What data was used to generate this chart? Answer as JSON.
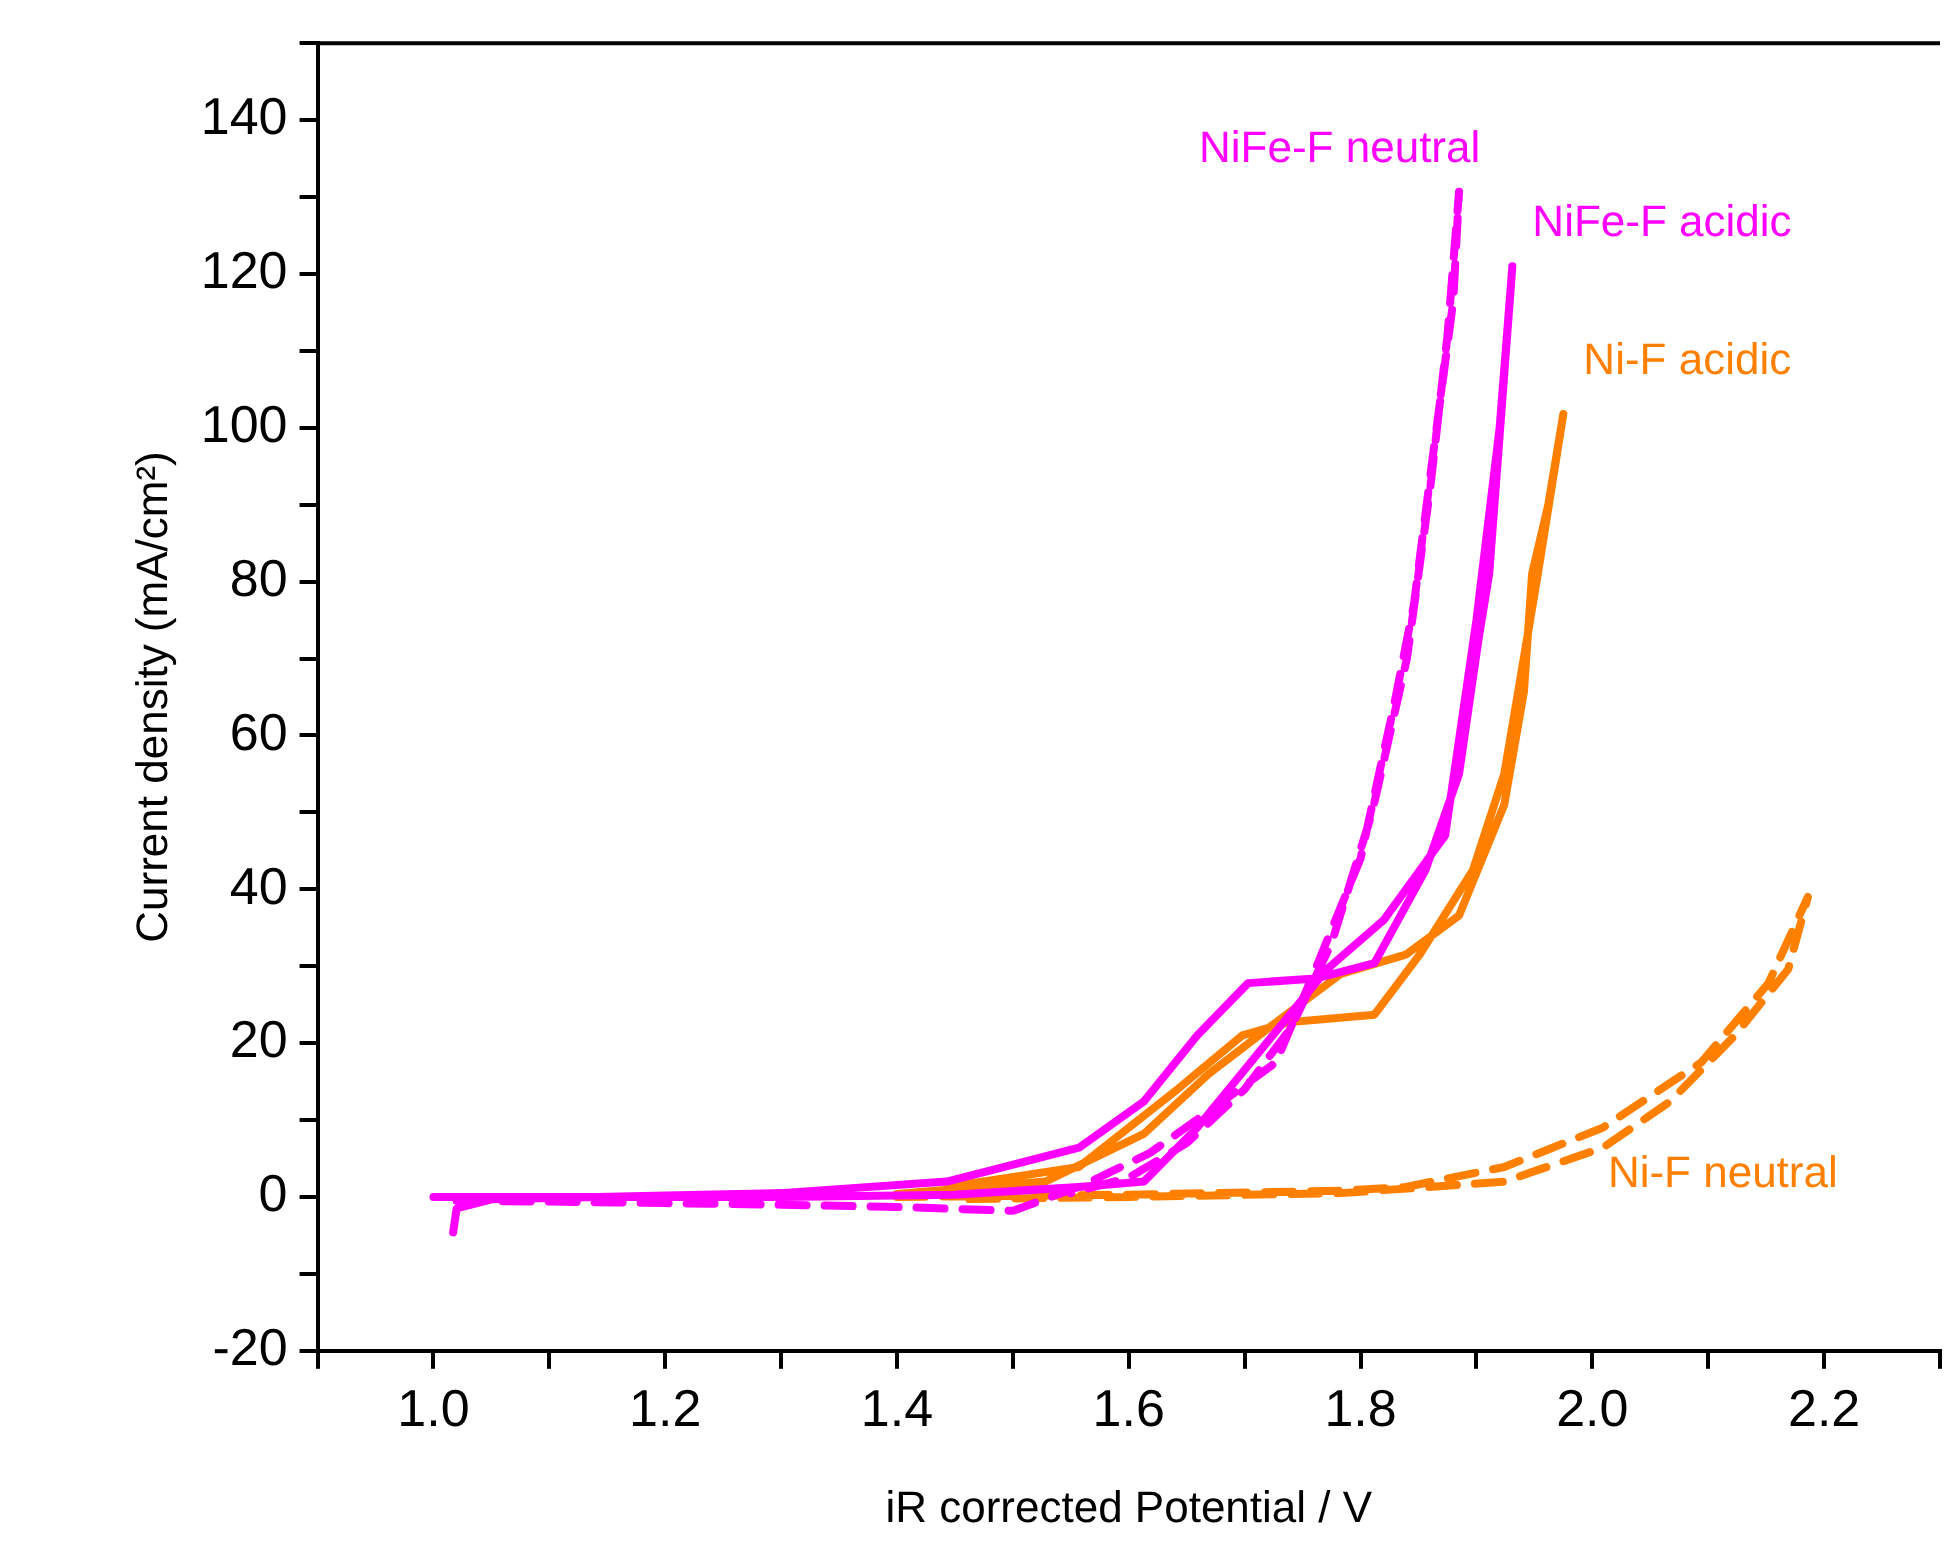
{
  "chart_data": {
    "type": "line",
    "xlabel": "iR corrected Potential / V",
    "ylabel": "Current density (mA/cm²)",
    "xlim": [
      0.9,
      2.3
    ],
    "ylim": [
      -20,
      150
    ],
    "xticks": [
      {
        "value": 0.9,
        "label": null
      },
      {
        "value": 1.0,
        "label": "1.0"
      },
      {
        "value": 1.1,
        "label": null
      },
      {
        "value": 1.2,
        "label": "1.2"
      },
      {
        "value": 1.3,
        "label": null
      },
      {
        "value": 1.4,
        "label": "1.4"
      },
      {
        "value": 1.5,
        "label": null
      },
      {
        "value": 1.6,
        "label": "1.6"
      },
      {
        "value": 1.7,
        "label": null
      },
      {
        "value": 1.8,
        "label": "1.8"
      },
      {
        "value": 1.9,
        "label": null
      },
      {
        "value": 2.0,
        "label": "2.0"
      },
      {
        "value": 2.1,
        "label": null
      },
      {
        "value": 2.2,
        "label": "2.2"
      },
      {
        "value": 2.3,
        "label": null
      }
    ],
    "yticks": [
      -20,
      {
        "value": -10,
        "label": null
      },
      0,
      {
        "value": 10,
        "label": null
      },
      20,
      {
        "value": 30,
        "label": null
      },
      40,
      {
        "value": 50,
        "label": null
      },
      60,
      {
        "value": 70,
        "label": null
      },
      80,
      {
        "value": 90,
        "label": null
      },
      100,
      {
        "value": 110,
        "label": null
      },
      120,
      {
        "value": 130,
        "label": null
      },
      140,
      {
        "value": 150,
        "label": null
      }
    ],
    "grid": false,
    "legend": false,
    "marker": "none",
    "series": [
      {
        "name": "NiFe-F neutral",
        "color": "#ff00ff",
        "line_style": "dashed",
        "x": [
          1.02,
          1.1,
          1.2,
          1.3,
          1.4,
          1.5,
          1.56,
          1.618,
          1.681,
          1.727,
          1.761,
          1.8,
          1.829,
          1.846,
          1.863,
          1.88,
          1.885,
          1.875,
          1.86,
          1.84,
          1.81,
          1.775,
          1.74,
          1.7,
          1.65,
          1.6,
          1.55
        ],
        "values": [
          -0.5,
          -0.6,
          -0.8,
          -1,
          -1.3,
          -1.8,
          1.5,
          5.7,
          12.4,
          17.5,
          29.6,
          44,
          64,
          77,
          97,
          116.5,
          130.7,
          112,
          92,
          70,
          50,
          33,
          22,
          14,
          7,
          2.5,
          0.5
        ]
      },
      {
        "name": "NiFe-F acidic",
        "color": "#ff00ff",
        "line_style": "solid",
        "x": [
          1.017,
          1.02,
          1.05,
          1.2,
          1.3,
          1.443,
          1.557,
          1.613,
          1.659,
          1.703,
          1.761,
          1.812,
          1.856,
          1.885,
          1.902,
          1.911,
          1.931,
          1.92,
          1.9,
          1.873,
          1.82,
          1.771,
          1.715,
          1.659,
          1.613,
          1.557,
          1.45,
          1.3,
          1.15,
          1.0
        ],
        "values": [
          -4.6,
          -1.5,
          -0.3,
          0.2,
          0.5,
          2,
          6.4,
          12.4,
          21,
          27.8,
          28.4,
          30.4,
          42.5,
          55,
          72.7,
          81,
          121,
          100,
          75,
          47,
          36,
          29.6,
          19.3,
          9,
          2,
          1.3,
          0.3,
          0,
          0,
          0
        ]
      },
      {
        "name": "Ni-F acidic",
        "color": "#ff8000",
        "line_style": "solid",
        "x": [
          1.443,
          1.557,
          1.642,
          1.698,
          1.737,
          1.812,
          1.851,
          1.897,
          1.924,
          1.936,
          1.953,
          1.975,
          1.962,
          1.948,
          1.941,
          1.924,
          1.885,
          1.839,
          1.783,
          1.727,
          1.669,
          1.613,
          1.528,
          1.4
        ],
        "values": [
          1.3,
          3.9,
          14,
          21,
          22.7,
          23.7,
          31.5,
          42.5,
          55,
          65.7,
          81,
          101.8,
          90,
          81,
          65.7,
          51,
          36.6,
          31.5,
          29,
          22.7,
          16,
          8.2,
          2,
          0.4
        ]
      },
      {
        "name": "Ni-F neutral",
        "color": "#ff8000",
        "line_style": "dashed",
        "x": [
          1.4,
          1.6,
          1.783,
          1.839,
          1.924,
          2.009,
          2.094,
          2.152,
          2.186,
          2.169,
          2.123,
          2.067,
          2.009,
          1.924,
          1.783,
          1.6,
          1.45
        ],
        "values": [
          0,
          0.3,
          0.8,
          1.3,
          3.9,
          9,
          17.5,
          27.8,
          39,
          29.6,
          21,
          12.4,
          6.4,
          2,
          0.5,
          0,
          -0.3
        ]
      }
    ]
  }
}
